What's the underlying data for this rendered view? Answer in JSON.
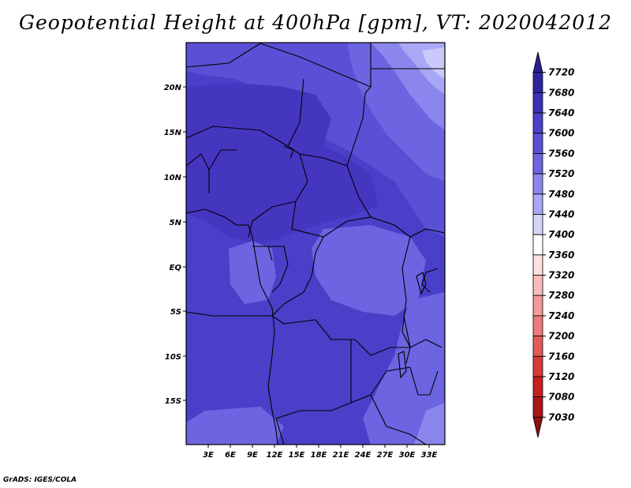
{
  "title": "Geopotential Height at 400hPa [gpm], VT: 2020042012",
  "credit": "GrADS: IGES/COLA",
  "map": {
    "lat_labels": [
      "20N",
      "15N",
      "10N",
      "5N",
      "EQ",
      "5S",
      "10S",
      "15S"
    ],
    "lon_labels": [
      "3E",
      "6E",
      "9E",
      "12E",
      "15E",
      "18E",
      "21E",
      "24E",
      "27E",
      "30E",
      "33E"
    ],
    "field_colors": {
      "base": "#4a3fc8",
      "deep": "#4536c0",
      "mid": "#5a50d6",
      "light": "#6c64e0",
      "pale": "#8a86ee",
      "palest": "#a9a8f6",
      "whitish": "#c9c9fb"
    }
  },
  "colorbar": {
    "labels": [
      "7720",
      "7680",
      "7640",
      "7600",
      "7560",
      "7520",
      "7480",
      "7440",
      "7400",
      "7360",
      "7320",
      "7280",
      "7240",
      "7200",
      "7160",
      "7120",
      "7080",
      "7030"
    ],
    "colors": [
      "#2a1f8c",
      "#2f24a0",
      "#3c30b8",
      "#4a3fc8",
      "#5a50d6",
      "#6c64e0",
      "#8a86ee",
      "#a9a8f6",
      "#d4d4fb",
      "#ffffff",
      "#fde0e0",
      "#f8bcbc",
      "#f39a9a",
      "#ec7a7a",
      "#e35a5a",
      "#d63a3a",
      "#c42020",
      "#a81616",
      "#8c1010"
    ]
  }
}
